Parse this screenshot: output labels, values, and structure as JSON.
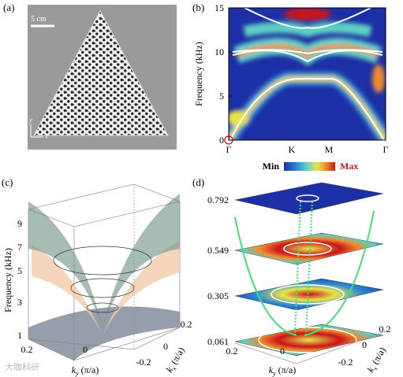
{
  "panel_labels": {
    "a": "(a)",
    "b": "(b)",
    "c": "(c)",
    "d": "(d)"
  },
  "panel_a": {
    "scale_bar": "5 cm",
    "axis_x": "x",
    "axis_y": "y",
    "colors": {
      "background": "#9a9a9a",
      "sample": "#ededed"
    }
  },
  "chart_data": [
    {
      "type": "heatmap",
      "panel": "b",
      "ylabel": "Frequency (kHz)",
      "yticks": [
        0,
        5,
        10,
        15
      ],
      "ylim": [
        0,
        15
      ],
      "xticks": [
        "Γ",
        "K",
        "M",
        "Γ"
      ],
      "colorbar": {
        "min_label": "Min",
        "max_label": "Max",
        "colors": [
          "#1c2fa4",
          "#2c89d3",
          "#5fd0c4",
          "#e8e44a",
          "#f08a2d",
          "#c8141b"
        ]
      },
      "bands": [
        {
          "name": "",
          "values": [
            [
              0,
              0
            ],
            [
              0.45,
              6.9
            ],
            [
              0.62,
              7.1
            ],
            [
              1.0,
              0
            ]
          ]
        },
        {
          "name": "",
          "values": [
            [
              0,
              11.8
            ],
            [
              0.45,
              9.7
            ],
            [
              0.62,
              10.0
            ],
            [
              1.0,
              11.8
            ]
          ]
        },
        {
          "name": "",
          "values": [
            [
              0,
              11.8
            ],
            [
              0.45,
              11.2
            ],
            [
              0.62,
              11.4
            ],
            [
              1.0,
              11.8
            ]
          ]
        },
        {
          "name": "",
          "values": [
            [
              0,
              15
            ],
            [
              0.45,
              13.0
            ],
            [
              0.62,
              13.2
            ],
            [
              1.0,
              15
            ]
          ]
        }
      ]
    },
    {
      "type": "surface",
      "panel": "c",
      "zlabel": "Frequency (kHz)",
      "zticks": [
        1,
        3,
        5,
        7,
        9
      ],
      "ylabel_text": "k",
      "ylabel_sub": "y",
      "ylabel_unit": " (π/a)",
      "xlabel_text": "k",
      "xlabel_sub": "x",
      "xlabel_unit": " (π/a)",
      "yticks": [
        "0.2",
        "0",
        "-0.2"
      ],
      "xticks": [
        "0",
        "0.2"
      ],
      "surfaces": [
        {
          "name": "",
          "color": "#6d8f80"
        },
        {
          "name": "",
          "color": "#f0c8a6"
        },
        {
          "name": "",
          "color": "#7c8496"
        }
      ]
    },
    {
      "type": "heatmap",
      "panel": "d",
      "slices": [
        "0.792",
        "0.549",
        "0.305",
        "0.061"
      ],
      "ylabel_text": "k",
      "ylabel_sub": "y",
      "ylabel_unit": " (π/a)",
      "xlabel_text": "k",
      "xlabel_sub": "x",
      "xlabel_unit": " (π/a)",
      "yticks": [
        "0.2",
        "0",
        "-0.2"
      ],
      "xticks": [
        "0",
        "0.2"
      ],
      "colors": {
        "cone": "#3ee07a",
        "low": "#1c2fa4",
        "high": "#c8141b"
      }
    }
  ]
}
